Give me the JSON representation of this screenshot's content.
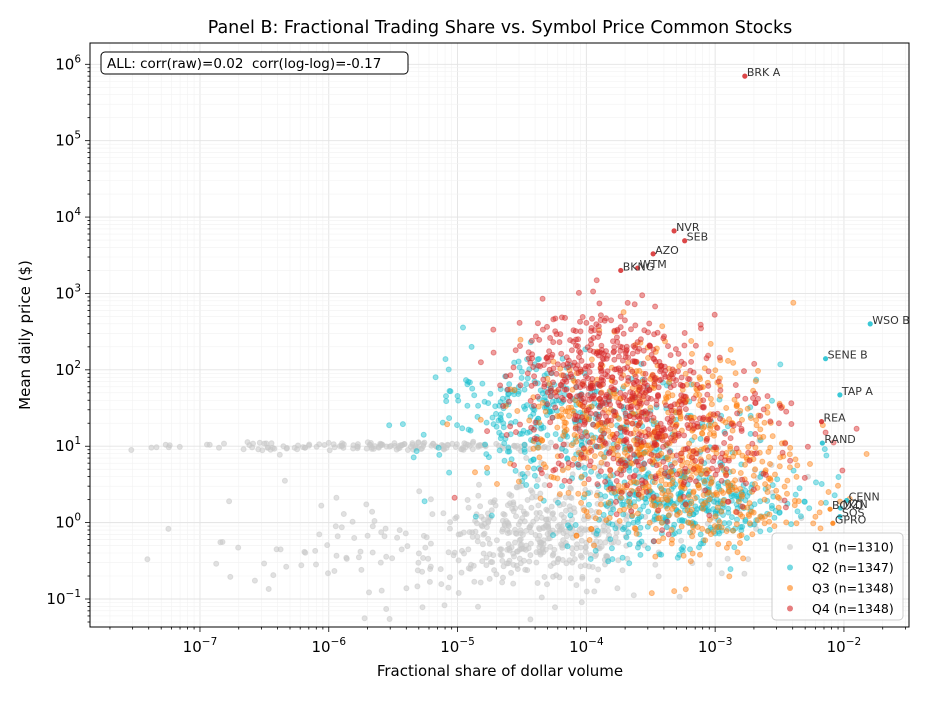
{
  "chart_data": {
    "type": "scatter",
    "title": "Panel B: Fractional Trading Share vs. Symbol Price Common Stocks",
    "xlabel": "Fractional share of dollar volume",
    "ylabel": "Mean daily price ($)",
    "x_scale": "log",
    "y_scale": "log",
    "xlim": [
      1.4e-08,
      0.032
    ],
    "ylim": [
      0.043,
      1900000.0
    ],
    "x_ticks": [
      {
        "value": 1e-07,
        "base": "10",
        "exp": "−7"
      },
      {
        "value": 1e-06,
        "base": "10",
        "exp": "−6"
      },
      {
        "value": 1e-05,
        "base": "10",
        "exp": "−5"
      },
      {
        "value": 0.0001,
        "base": "10",
        "exp": "−4"
      },
      {
        "value": 0.001,
        "base": "10",
        "exp": "−3"
      },
      {
        "value": 0.01,
        "base": "10",
        "exp": "−2"
      }
    ],
    "y_ticks": [
      {
        "value": 0.1,
        "base": "10",
        "exp": "−1"
      },
      {
        "value": 1,
        "base": "10",
        "exp": "0"
      },
      {
        "value": 10,
        "base": "10",
        "exp": "1"
      },
      {
        "value": 100,
        "base": "10",
        "exp": "2"
      },
      {
        "value": 1000,
        "base": "10",
        "exp": "3"
      },
      {
        "value": 10000,
        "base": "10",
        "exp": "4"
      },
      {
        "value": 100000,
        "base": "10",
        "exp": "5"
      },
      {
        "value": 1000000,
        "base": "10",
        "exp": "6"
      }
    ],
    "grid": true,
    "legend_position": "bottom-right",
    "stats_box": "ALL: corr(raw)=0.02  corr(log-log)=-0.17",
    "series": [
      {
        "name": "Q1 (n=1310)",
        "color": "#c8c8c8",
        "n": 1310
      },
      {
        "name": "Q2 (n=1347)",
        "color": "#17becf",
        "n": 1347
      },
      {
        "name": "Q3 (n=1348)",
        "color": "#ff7f0e",
        "n": 1348
      },
      {
        "name": "Q4 (n=1348)",
        "color": "#d62728",
        "n": 1348
      }
    ],
    "annotations": [
      {
        "label": "BRK A",
        "x": 0.0017,
        "y": 700000,
        "series": 3
      },
      {
        "label": "NVR",
        "x": 0.00048,
        "y": 6600,
        "series": 3
      },
      {
        "label": "SEB",
        "x": 0.00058,
        "y": 4900,
        "series": 3
      },
      {
        "label": "AZO",
        "x": 0.00033,
        "y": 3300,
        "series": 3
      },
      {
        "label": "WTM",
        "x": 0.00025,
        "y": 2150,
        "series": 3
      },
      {
        "label": "BKNG",
        "x": 0.000185,
        "y": 2000,
        "series": 3
      },
      {
        "label": "WSO B",
        "x": 0.016,
        "y": 400,
        "series": 1
      },
      {
        "label": "SENE B",
        "x": 0.0072,
        "y": 140,
        "series": 1
      },
      {
        "label": "TAP A",
        "x": 0.0093,
        "y": 47,
        "series": 1
      },
      {
        "label": "REA",
        "x": 0.0067,
        "y": 21,
        "series": 3
      },
      {
        "label": "RAND",
        "x": 0.0068,
        "y": 11,
        "series": 1
      },
      {
        "label": "CENN",
        "x": 0.0105,
        "y": 1.95,
        "series": 1
      },
      {
        "label": "MZN",
        "x": 0.0094,
        "y": 1.55,
        "series": 1
      },
      {
        "label": "BOXD",
        "x": 0.0078,
        "y": 1.5,
        "series": 2
      },
      {
        "label": "SOS",
        "x": 0.0093,
        "y": 1.2,
        "series": 1
      },
      {
        "label": "GPRO",
        "x": 0.0082,
        "y": 0.98,
        "series": 2
      }
    ]
  }
}
